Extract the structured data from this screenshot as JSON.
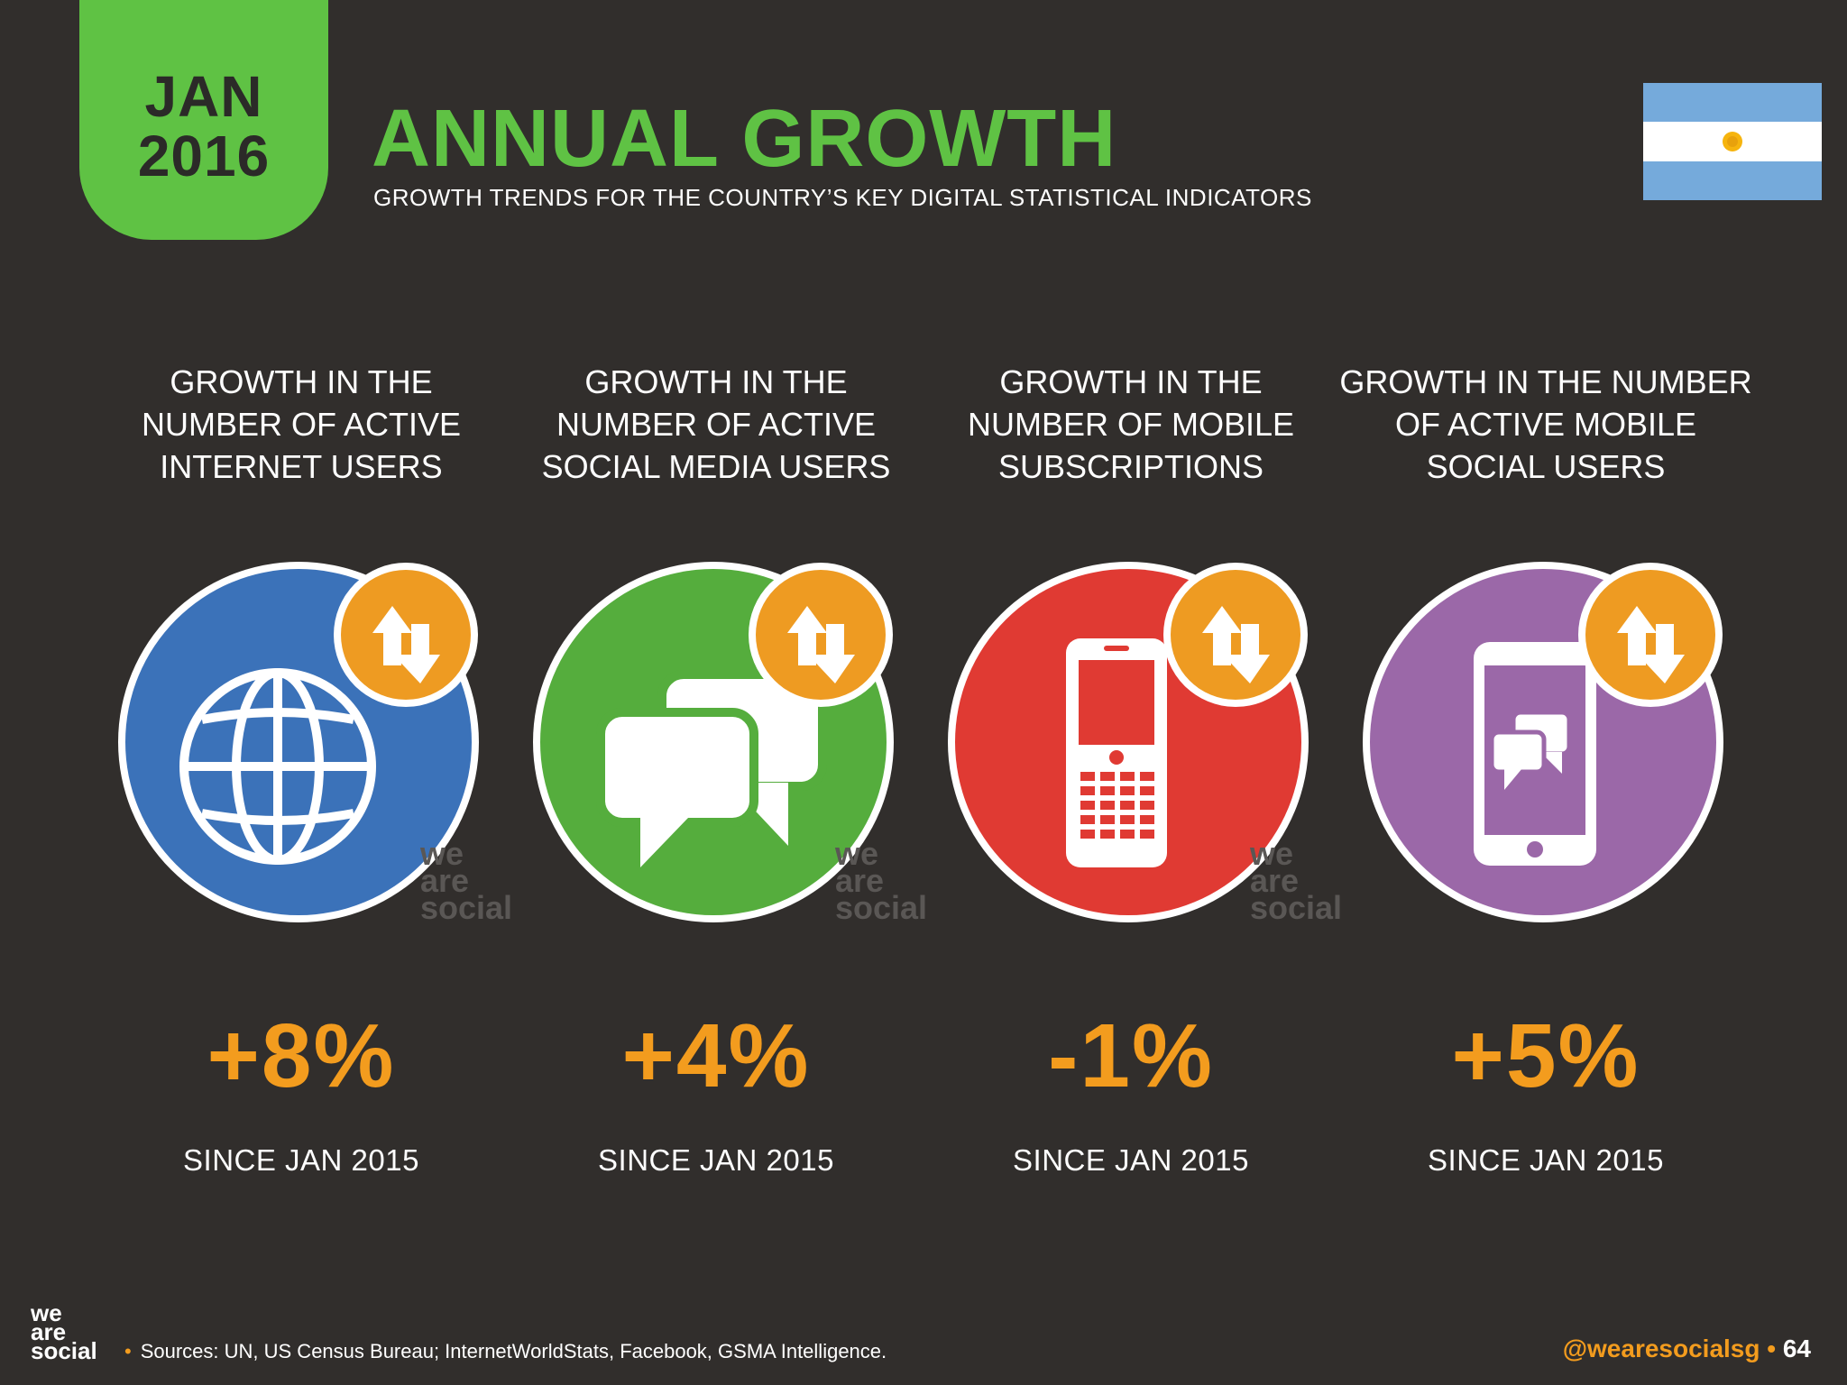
{
  "header": {
    "month": "JAN",
    "year": "2016",
    "title": "ANNUAL GROWTH",
    "subtitle": "GROWTH TRENDS FOR THE COUNTRY’S KEY DIGITAL STATISTICAL INDICATORS"
  },
  "watermark": "we are social",
  "stats": [
    {
      "heading": "GROWTH IN THE\nNUMBER OF ACTIVE\nINTERNET USERS",
      "value": "+8%",
      "since": "SINCE JAN 2015",
      "icon": "globe-icon",
      "color": "#3b72b9"
    },
    {
      "heading": "GROWTH IN THE\nNUMBER OF ACTIVE\nSOCIAL MEDIA USERS",
      "value": "+4%",
      "since": "SINCE JAN 2015",
      "icon": "chat-bubbles-icon",
      "color": "#55ad3d"
    },
    {
      "heading": "GROWTH IN THE\nNUMBER OF MOBILE\nSUBSCRIPTIONS",
      "value": "-1%",
      "since": "SINCE JAN 2015",
      "icon": "mobile-phone-icon",
      "color": "#e03a33"
    },
    {
      "heading": "GROWTH IN THE NUMBER\nOF ACTIVE MOBILE\nSOCIAL USERS",
      "value": "+5%",
      "since": "SINCE JAN 2015",
      "icon": "smartphone-chat-icon",
      "color": "#9b68a8"
    }
  ],
  "badge_color": "#ee9b22",
  "footer": {
    "logo": "we are social",
    "sources": "Sources: UN, US Census Bureau; InternetWorldStats, Facebook, GSMA Intelligence.",
    "handle": "@wearesocialsg",
    "page": "64"
  }
}
